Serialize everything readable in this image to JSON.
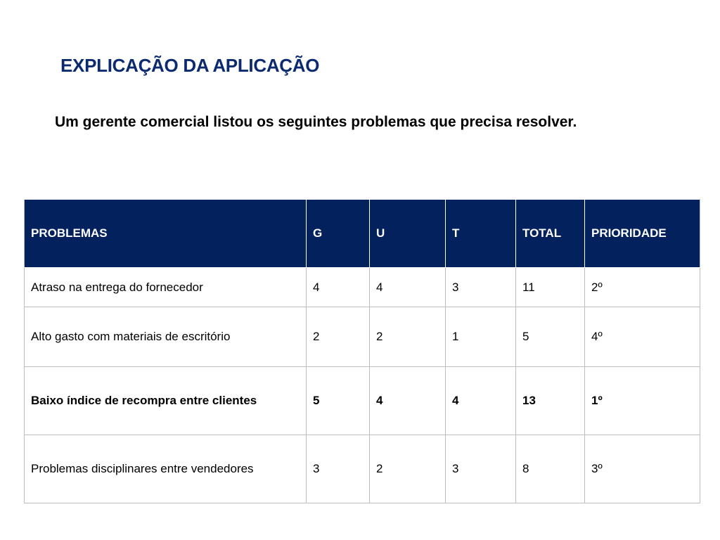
{
  "title": "EXPLICAÇÃO DA APLICAÇÃO",
  "subtitle": "Um gerente comercial listou os seguintes problemas que precisa resolver.",
  "table": {
    "headers": [
      "PROBLEMAS",
      "G",
      "U",
      "T",
      "TOTAL",
      "PRIORIDADE"
    ],
    "rows": [
      [
        "Atraso na entrega do fornecedor",
        "4",
        "4",
        "3",
        "11",
        "2º"
      ],
      [
        "Alto gasto com materiais de escritório",
        "2",
        "2",
        "1",
        "5",
        "4º"
      ],
      [
        "Baixo índice de recompra entre clientes",
        "5",
        "4",
        "4",
        "13",
        "1º"
      ],
      [
        "Problemas disciplinares entre vendedores",
        "3",
        "2",
        "3",
        "8",
        "3º"
      ]
    ]
  },
  "colors": {
    "title": "#0b2a6f",
    "header_bg": "#03215c",
    "header_text": "#ffffff",
    "border": "#bdbdbd"
  }
}
